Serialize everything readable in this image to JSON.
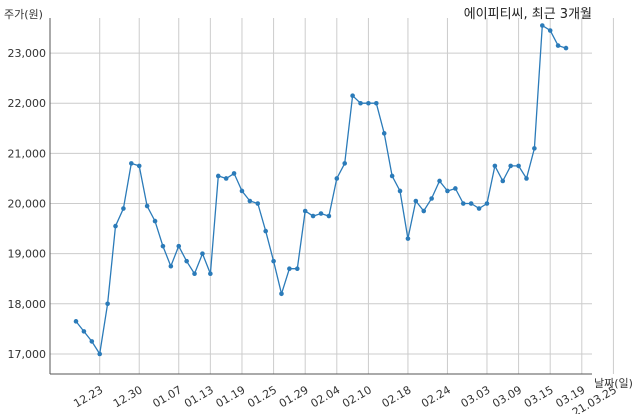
{
  "chart_data": {
    "type": "line",
    "title": "에이피티씨, 최근 3개월",
    "ylabel": "주가(원)",
    "xlabel": "날짜(일)",
    "ylim": [
      16600,
      23700
    ],
    "grid": true,
    "yticks": [
      17000,
      18000,
      19000,
      20000,
      21000,
      22000,
      23000
    ],
    "ytick_labels": [
      "17,000",
      "18,000",
      "19,000",
      "20,000",
      "21,000",
      "22,000",
      "23,000"
    ],
    "xtick_labels": [
      "12.23",
      "12.30",
      "01.07",
      "01.13",
      "01.19",
      "01.25",
      "01.29",
      "02.04",
      "02.10",
      "02.18",
      "02.24",
      "03.03",
      "03.09",
      "03.15",
      "03.19",
      "21.03.25"
    ],
    "xtick_positions": [
      3,
      8,
      13,
      17,
      21,
      25,
      29,
      33,
      37,
      42,
      47,
      52,
      56,
      60,
      64,
      68
    ],
    "line_color": "#2b7bb9",
    "values": [
      17650,
      17450,
      17250,
      17000,
      18000,
      19550,
      19900,
      20800,
      20750,
      19950,
      19650,
      19150,
      18750,
      19150,
      18850,
      18600,
      19000,
      18600,
      20550,
      20500,
      20600,
      20250,
      20050,
      20000,
      19450,
      18850,
      18200,
      18700,
      18700,
      19850,
      19750,
      19800,
      19750,
      20500,
      20800,
      22150,
      22000,
      22000,
      22000,
      21400,
      20550,
      20250,
      19300,
      20050,
      19850,
      20100,
      20450,
      20250,
      20300,
      20000,
      20000,
      19900,
      20000,
      20750,
      20450,
      20750,
      20750,
      20500,
      21100,
      23550,
      23450,
      23150,
      23100
    ]
  }
}
